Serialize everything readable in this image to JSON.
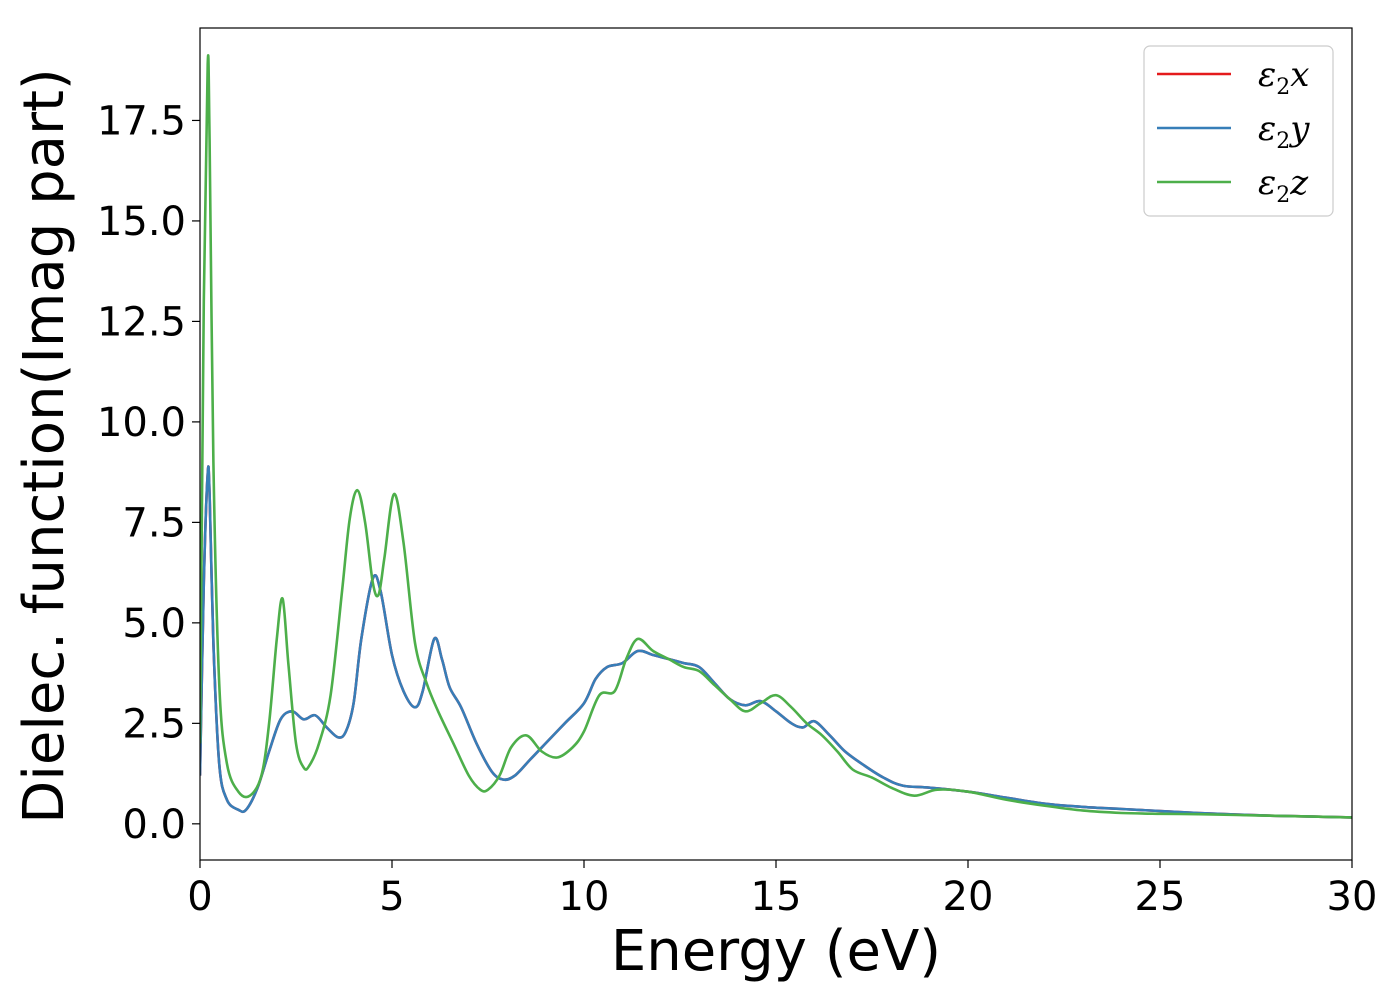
{
  "chart_data": {
    "type": "line",
    "xlabel": "Energy (eV)",
    "ylabel": "Dielec. function(Imag part)",
    "xlim": [
      0,
      30
    ],
    "ylim": [
      -0.9,
      19.8
    ],
    "xticks": [
      0,
      5,
      10,
      15,
      20,
      25,
      30
    ],
    "yticks": [
      0.0,
      2.5,
      5.0,
      7.5,
      10.0,
      12.5,
      15.0,
      17.5
    ],
    "xtick_labels": [
      "0",
      "5",
      "10",
      "15",
      "20",
      "25",
      "30"
    ],
    "ytick_labels": [
      "0.0",
      "2.5",
      "5.0",
      "7.5",
      "10.0",
      "12.5",
      "15.0",
      "17.5"
    ],
    "grid": false,
    "legend_position": "top-right",
    "legend": [
      {
        "base": "ε",
        "sub": "2",
        "tail": "x"
      },
      {
        "base": "ε",
        "sub": "2",
        "tail": "y"
      },
      {
        "base": "ε",
        "sub": "2",
        "tail": "z"
      }
    ],
    "series": [
      {
        "name": "ε2x",
        "color": "#e41a1c",
        "x": [
          0.0,
          0.1,
          0.2,
          0.25,
          0.35,
          0.5,
          0.7,
          1.0,
          1.2,
          1.5,
          1.8,
          2.1,
          2.4,
          2.7,
          3.0,
          3.3,
          3.6,
          3.8,
          4.0,
          4.2,
          4.5,
          4.7,
          5.0,
          5.3,
          5.6,
          5.8,
          6.1,
          6.3,
          6.5,
          6.8,
          7.2,
          7.6,
          7.9,
          8.2,
          8.6,
          9.0,
          9.5,
          10.0,
          10.3,
          10.6,
          11.0,
          11.4,
          11.8,
          12.2,
          12.6,
          13.0,
          13.4,
          13.8,
          14.2,
          14.6,
          15.0,
          15.4,
          15.7,
          16.0,
          16.4,
          16.8,
          17.3,
          17.8,
          18.3,
          19.0,
          20.0,
          21.0,
          22.0,
          23.0,
          24.0,
          25.0,
          26.0,
          27.0,
          28.0,
          29.0,
          30.0
        ],
        "y": [
          1.2,
          6.0,
          8.7,
          8.2,
          4.5,
          1.5,
          0.6,
          0.35,
          0.35,
          0.9,
          1.8,
          2.6,
          2.8,
          2.6,
          2.7,
          2.4,
          2.15,
          2.3,
          3.0,
          4.6,
          6.1,
          5.8,
          4.2,
          3.3,
          2.9,
          3.3,
          4.6,
          4.1,
          3.4,
          2.9,
          2.0,
          1.3,
          1.1,
          1.2,
          1.6,
          2.0,
          2.5,
          3.0,
          3.6,
          3.9,
          4.0,
          4.3,
          4.2,
          4.1,
          4.0,
          3.9,
          3.5,
          3.1,
          2.95,
          3.05,
          2.8,
          2.5,
          2.4,
          2.55,
          2.2,
          1.8,
          1.45,
          1.15,
          0.95,
          0.9,
          0.8,
          0.65,
          0.5,
          0.42,
          0.37,
          0.32,
          0.27,
          0.23,
          0.2,
          0.18,
          0.16
        ]
      },
      {
        "name": "ε2y",
        "color": "#377eb8",
        "x": [
          0.0,
          0.1,
          0.2,
          0.25,
          0.35,
          0.5,
          0.7,
          1.0,
          1.2,
          1.5,
          1.8,
          2.1,
          2.4,
          2.7,
          3.0,
          3.3,
          3.6,
          3.8,
          4.0,
          4.2,
          4.5,
          4.7,
          5.0,
          5.3,
          5.6,
          5.8,
          6.1,
          6.3,
          6.5,
          6.8,
          7.2,
          7.6,
          7.9,
          8.2,
          8.6,
          9.0,
          9.5,
          10.0,
          10.3,
          10.6,
          11.0,
          11.4,
          11.8,
          12.2,
          12.6,
          13.0,
          13.4,
          13.8,
          14.2,
          14.6,
          15.0,
          15.4,
          15.7,
          16.0,
          16.4,
          16.8,
          17.3,
          17.8,
          18.3,
          19.0,
          20.0,
          21.0,
          22.0,
          23.0,
          24.0,
          25.0,
          26.0,
          27.0,
          28.0,
          29.0,
          30.0
        ],
        "y": [
          1.2,
          6.0,
          8.7,
          8.2,
          4.5,
          1.5,
          0.6,
          0.35,
          0.35,
          0.9,
          1.8,
          2.6,
          2.8,
          2.6,
          2.7,
          2.4,
          2.15,
          2.3,
          3.0,
          4.6,
          6.1,
          5.8,
          4.2,
          3.3,
          2.9,
          3.3,
          4.6,
          4.1,
          3.4,
          2.9,
          2.0,
          1.3,
          1.1,
          1.2,
          1.6,
          2.0,
          2.5,
          3.0,
          3.6,
          3.9,
          4.0,
          4.3,
          4.2,
          4.1,
          4.0,
          3.9,
          3.5,
          3.1,
          2.95,
          3.05,
          2.8,
          2.5,
          2.4,
          2.55,
          2.2,
          1.8,
          1.45,
          1.15,
          0.95,
          0.9,
          0.8,
          0.65,
          0.5,
          0.42,
          0.37,
          0.32,
          0.27,
          0.23,
          0.2,
          0.18,
          0.16
        ]
      },
      {
        "name": "ε2z",
        "color": "#4daf4a",
        "x": [
          0.0,
          0.1,
          0.2,
          0.25,
          0.35,
          0.5,
          0.7,
          1.0,
          1.3,
          1.6,
          1.8,
          2.0,
          2.15,
          2.3,
          2.5,
          2.7,
          2.85,
          3.1,
          3.4,
          3.7,
          3.9,
          4.1,
          4.3,
          4.5,
          4.65,
          4.8,
          5.05,
          5.3,
          5.6,
          5.9,
          6.2,
          6.6,
          7.0,
          7.3,
          7.5,
          7.8,
          8.1,
          8.5,
          8.9,
          9.3,
          9.7,
          10.0,
          10.4,
          10.8,
          11.1,
          11.4,
          11.8,
          12.2,
          12.6,
          13.0,
          13.4,
          13.8,
          14.2,
          14.6,
          15.0,
          15.4,
          15.8,
          16.2,
          16.6,
          17.0,
          17.5,
          18.0,
          18.6,
          19.2,
          20.0,
          21.0,
          22.0,
          23.0,
          24.0,
          25.0,
          26.0,
          27.0,
          28.0,
          29.0,
          30.0
        ],
        "y": [
          2.0,
          13.0,
          18.9,
          17.0,
          9.0,
          3.5,
          1.5,
          0.8,
          0.7,
          1.2,
          2.5,
          4.6,
          5.6,
          4.0,
          2.0,
          1.4,
          1.45,
          2.0,
          3.2,
          5.8,
          7.6,
          8.3,
          7.5,
          6.0,
          5.7,
          6.6,
          8.2,
          7.0,
          4.5,
          3.5,
          2.8,
          2.0,
          1.2,
          0.85,
          0.85,
          1.2,
          1.9,
          2.2,
          1.8,
          1.65,
          1.9,
          2.3,
          3.2,
          3.3,
          4.1,
          4.6,
          4.3,
          4.1,
          3.9,
          3.8,
          3.45,
          3.1,
          2.8,
          3.0,
          3.2,
          2.9,
          2.5,
          2.2,
          1.8,
          1.35,
          1.15,
          0.9,
          0.7,
          0.85,
          0.8,
          0.6,
          0.45,
          0.33,
          0.27,
          0.25,
          0.24,
          0.22,
          0.2,
          0.18,
          0.16
        ]
      }
    ]
  }
}
